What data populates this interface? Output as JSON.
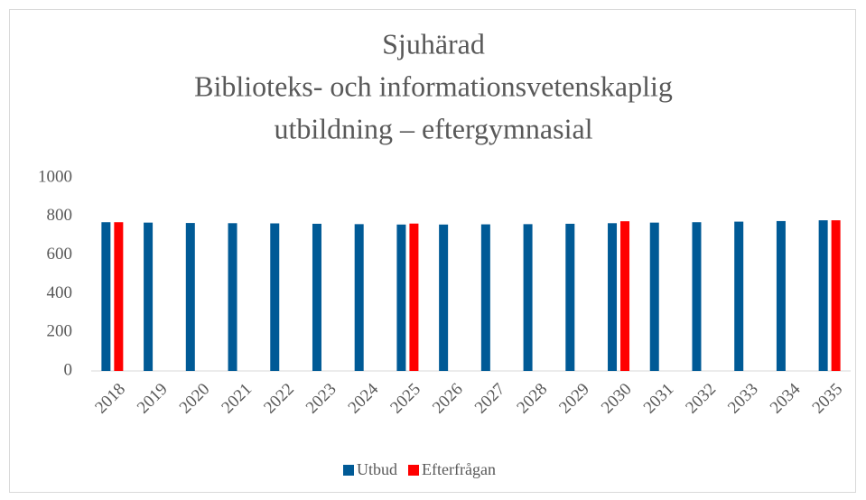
{
  "chart_data": {
    "type": "bar",
    "title": [
      "Sjuhärad",
      "Biblioteks- och informationsvetenskaplig",
      "utbildning – eftergymnasial"
    ],
    "categories": [
      "2018",
      "2019",
      "2020",
      "2021",
      "2022",
      "2023",
      "2024",
      "2025",
      "2026",
      "2027",
      "2028",
      "2029",
      "2030",
      "2031",
      "2032",
      "2033",
      "2034",
      "2035"
    ],
    "series": [
      {
        "name": "Utbud",
        "color": "#005a96",
        "values": [
          770,
          768,
          766,
          765,
          764,
          762,
          760,
          758,
          758,
          759,
          760,
          762,
          765,
          768,
          770,
          773,
          776,
          780
        ]
      },
      {
        "name": "Efterfrågan",
        "color": "#ff0000",
        "values": [
          770,
          null,
          null,
          null,
          null,
          null,
          null,
          763,
          null,
          null,
          null,
          null,
          775,
          null,
          null,
          null,
          null,
          780
        ]
      }
    ],
    "ylim": [
      0,
      1000
    ],
    "yticks": [
      0,
      200,
      400,
      600,
      800,
      1000
    ],
    "grid": false,
    "legend": "bottom"
  }
}
